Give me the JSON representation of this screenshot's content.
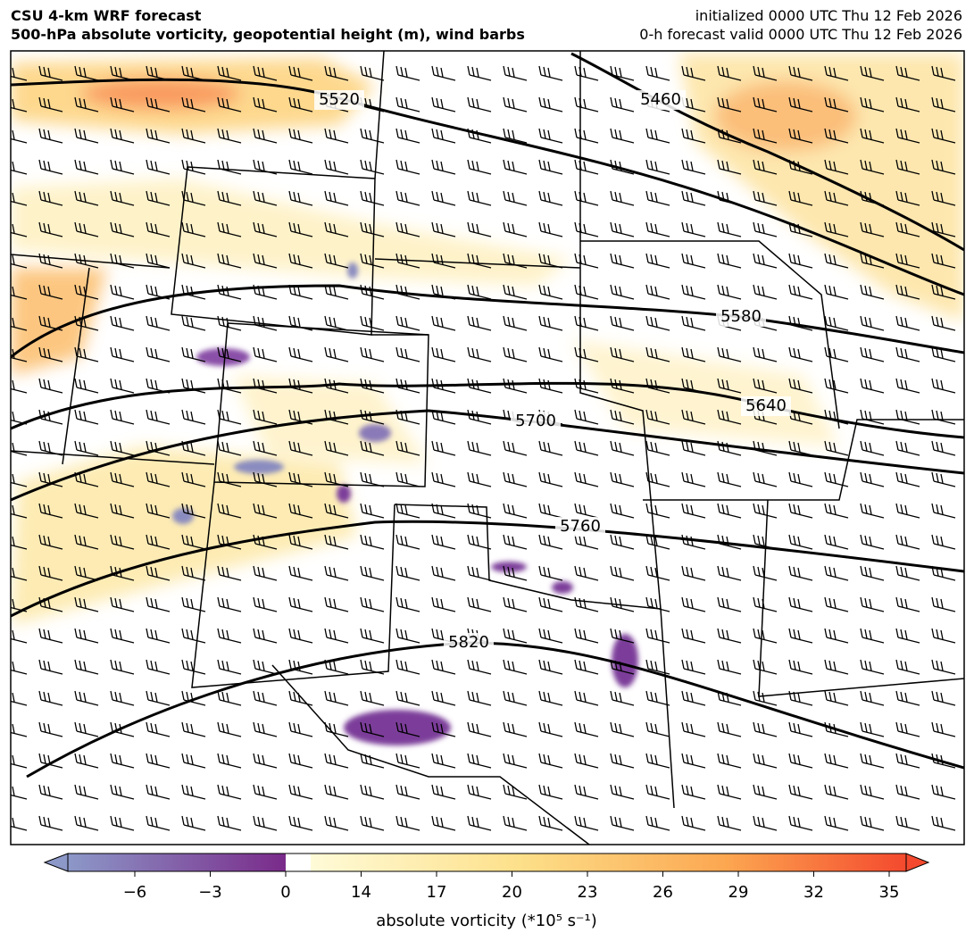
{
  "header": {
    "title_left": [
      "CSU 4-km WRF forecast",
      "500-hPa absolute vorticity, geopotential height (m), wind barbs"
    ],
    "title_right": [
      "initialized 0000 UTC Thu 12 Feb 2026",
      "0-h forecast valid 0000 UTC Thu 12 Feb 2026"
    ]
  },
  "contour_labels": [
    "5520",
    "5460",
    "5580",
    "5640",
    "5700",
    "5760",
    "5820"
  ],
  "colorbar": {
    "ticks": [
      "−6",
      "−3",
      "0",
      "14",
      "17",
      "20",
      "23",
      "26",
      "29",
      "32",
      "35"
    ],
    "label": "absolute vorticity (*10⁵ s⁻¹)"
  }
}
